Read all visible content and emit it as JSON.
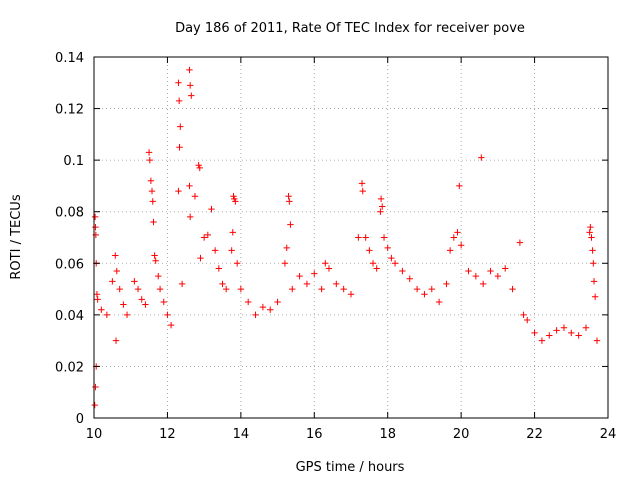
{
  "chart_data": {
    "type": "scatter",
    "title": "Day 186 of 2011, Rate Of TEC Index for receiver pove",
    "xlabel": "GPS time / hours",
    "ylabel": "ROTI / TECUs",
    "xlim": [
      10,
      24
    ],
    "ylim": [
      0,
      0.14
    ],
    "xticks": [
      10,
      12,
      14,
      16,
      18,
      20,
      22,
      24
    ],
    "xtick_labels": [
      "10",
      "12",
      "14",
      "16",
      "18",
      "20",
      "22",
      "24"
    ],
    "yticks": [
      0,
      0.02,
      0.04,
      0.06,
      0.08,
      0.1,
      0.12,
      0.14
    ],
    "ytick_labels": [
      "0",
      "0.02",
      "0.04",
      "0.06",
      "0.08",
      "0.1",
      "0.12",
      "0.14"
    ],
    "grid": true,
    "marker": "+",
    "color": "#ff0000",
    "series": [
      {
        "points": [
          [
            10.03,
            0.078
          ],
          [
            10.04,
            0.074
          ],
          [
            10.05,
            0.071
          ],
          [
            10.06,
            0.06
          ],
          [
            10.08,
            0.048
          ],
          [
            10.1,
            0.046
          ],
          [
            10.02,
            0.005
          ],
          [
            10.04,
            0.012
          ],
          [
            10.06,
            0.02
          ],
          [
            10.2,
            0.042
          ],
          [
            10.35,
            0.04
          ],
          [
            10.5,
            0.053
          ],
          [
            10.58,
            0.063
          ],
          [
            10.62,
            0.057
          ],
          [
            10.7,
            0.05
          ],
          [
            10.8,
            0.044
          ],
          [
            10.9,
            0.04
          ],
          [
            10.6,
            0.03
          ],
          [
            11.1,
            0.053
          ],
          [
            11.2,
            0.05
          ],
          [
            11.3,
            0.046
          ],
          [
            11.4,
            0.044
          ],
          [
            11.5,
            0.103
          ],
          [
            11.52,
            0.1
          ],
          [
            11.55,
            0.092
          ],
          [
            11.58,
            0.088
          ],
          [
            11.6,
            0.084
          ],
          [
            11.62,
            0.076
          ],
          [
            11.65,
            0.063
          ],
          [
            11.68,
            0.061
          ],
          [
            11.75,
            0.055
          ],
          [
            11.8,
            0.05
          ],
          [
            11.9,
            0.045
          ],
          [
            12.0,
            0.04
          ],
          [
            12.1,
            0.036
          ],
          [
            12.3,
            0.13
          ],
          [
            12.32,
            0.123
          ],
          [
            12.35,
            0.113
          ],
          [
            12.33,
            0.105
          ],
          [
            12.3,
            0.088
          ],
          [
            12.4,
            0.052
          ],
          [
            12.6,
            0.135
          ],
          [
            12.62,
            0.129
          ],
          [
            12.65,
            0.125
          ],
          [
            12.6,
            0.09
          ],
          [
            12.62,
            0.078
          ],
          [
            12.75,
            0.086
          ],
          [
            12.85,
            0.098
          ],
          [
            12.88,
            0.097
          ],
          [
            12.9,
            0.062
          ],
          [
            13.0,
            0.07
          ],
          [
            13.1,
            0.071
          ],
          [
            13.2,
            0.081
          ],
          [
            13.3,
            0.065
          ],
          [
            13.4,
            0.058
          ],
          [
            13.5,
            0.052
          ],
          [
            13.6,
            0.05
          ],
          [
            13.75,
            0.065
          ],
          [
            13.78,
            0.072
          ],
          [
            13.8,
            0.086
          ],
          [
            13.82,
            0.085
          ],
          [
            13.85,
            0.084
          ],
          [
            13.9,
            0.06
          ],
          [
            14.0,
            0.05
          ],
          [
            14.2,
            0.045
          ],
          [
            14.4,
            0.04
          ],
          [
            14.6,
            0.043
          ],
          [
            14.8,
            0.042
          ],
          [
            15.0,
            0.045
          ],
          [
            15.2,
            0.06
          ],
          [
            15.25,
            0.066
          ],
          [
            15.3,
            0.086
          ],
          [
            15.32,
            0.084
          ],
          [
            15.35,
            0.075
          ],
          [
            15.4,
            0.05
          ],
          [
            15.6,
            0.055
          ],
          [
            15.8,
            0.052
          ],
          [
            16.0,
            0.056
          ],
          [
            16.2,
            0.05
          ],
          [
            16.3,
            0.06
          ],
          [
            16.4,
            0.058
          ],
          [
            16.6,
            0.052
          ],
          [
            16.8,
            0.05
          ],
          [
            17.0,
            0.048
          ],
          [
            17.2,
            0.07
          ],
          [
            17.3,
            0.091
          ],
          [
            17.32,
            0.088
          ],
          [
            17.4,
            0.07
          ],
          [
            17.5,
            0.065
          ],
          [
            17.6,
            0.06
          ],
          [
            17.7,
            0.058
          ],
          [
            17.8,
            0.08
          ],
          [
            17.82,
            0.085
          ],
          [
            17.85,
            0.082
          ],
          [
            17.9,
            0.07
          ],
          [
            18.0,
            0.066
          ],
          [
            18.1,
            0.062
          ],
          [
            18.2,
            0.06
          ],
          [
            18.4,
            0.057
          ],
          [
            18.6,
            0.054
          ],
          [
            18.8,
            0.05
          ],
          [
            19.0,
            0.048
          ],
          [
            19.2,
            0.05
          ],
          [
            19.4,
            0.045
          ],
          [
            19.6,
            0.052
          ],
          [
            19.7,
            0.065
          ],
          [
            19.8,
            0.07
          ],
          [
            19.9,
            0.072
          ],
          [
            19.95,
            0.09
          ],
          [
            20.0,
            0.067
          ],
          [
            20.2,
            0.057
          ],
          [
            20.4,
            0.055
          ],
          [
            20.55,
            0.101
          ],
          [
            20.6,
            0.052
          ],
          [
            20.8,
            0.057
          ],
          [
            21.0,
            0.055
          ],
          [
            21.2,
            0.058
          ],
          [
            21.4,
            0.05
          ],
          [
            21.6,
            0.068
          ],
          [
            21.7,
            0.04
          ],
          [
            21.8,
            0.038
          ],
          [
            22.0,
            0.033
          ],
          [
            22.2,
            0.03
          ],
          [
            22.4,
            0.032
          ],
          [
            22.6,
            0.034
          ],
          [
            22.8,
            0.035
          ],
          [
            23.0,
            0.033
          ],
          [
            23.2,
            0.032
          ],
          [
            23.4,
            0.035
          ],
          [
            23.5,
            0.072
          ],
          [
            23.52,
            0.074
          ],
          [
            23.55,
            0.07
          ],
          [
            23.58,
            0.065
          ],
          [
            23.6,
            0.06
          ],
          [
            23.62,
            0.053
          ],
          [
            23.65,
            0.047
          ],
          [
            23.7,
            0.03
          ]
        ]
      }
    ]
  }
}
